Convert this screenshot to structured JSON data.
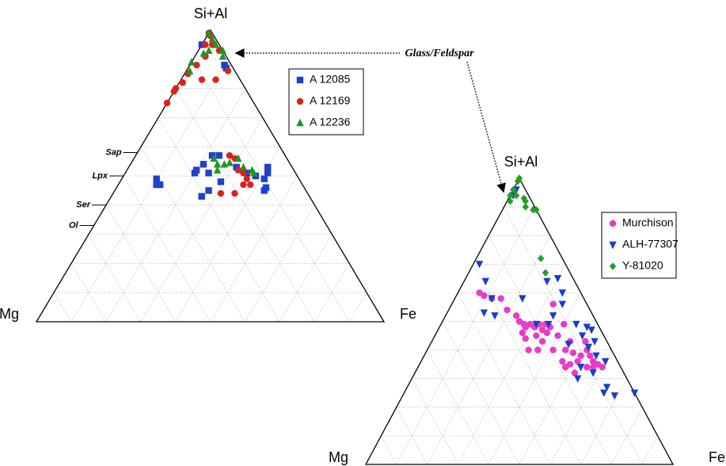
{
  "chart_data": [
    {
      "type": "ternary",
      "axes": {
        "top": "Si+Al",
        "left": "Mg",
        "right": "Fe"
      },
      "ticks": [
        10,
        20,
        30,
        40,
        50,
        60,
        70,
        80,
        90
      ],
      "grid": true,
      "axis_marks": [
        {
          "value": 58,
          "label": "Sap"
        },
        {
          "value": 50,
          "label": "Lpx"
        },
        {
          "value": 40,
          "label": "Ser"
        },
        {
          "value": 33,
          "label": "Ol"
        }
      ],
      "series": [
        {
          "name": "A 12085",
          "color": "#1f3fd0",
          "marker": "square",
          "values": [
            [
              95,
              5,
              0
            ],
            [
              88,
              2,
              10
            ],
            [
              87,
              2,
              11
            ],
            [
              49,
              41,
              10
            ],
            [
              47,
              41,
              12
            ],
            [
              47,
              42,
              11
            ],
            [
              51,
              29,
              20
            ],
            [
              52,
              28,
              20
            ],
            [
              54,
              25,
              21
            ],
            [
              51,
              25,
              24
            ],
            [
              57,
              21,
              22
            ],
            [
              57,
              19,
              24
            ],
            [
              45,
              28,
              27
            ],
            [
              43,
              31,
              26
            ],
            [
              48,
              23,
              29
            ],
            [
              53,
              16,
              31
            ],
            [
              53,
              7,
              40
            ],
            [
              51,
              8,
              41
            ],
            [
              49,
              10,
              41
            ],
            [
              46,
              11,
              43
            ],
            [
              45,
              12,
              43
            ],
            [
              51,
              14,
              35
            ],
            [
              50,
              12,
              38
            ]
          ]
        },
        {
          "name": "A 12169",
          "color": "#e0201a",
          "marker": "circle",
          "values": [
            [
              99,
              1,
              0
            ],
            [
              98,
              1,
              1
            ],
            [
              95,
              4,
              1
            ],
            [
              95,
              2,
              3
            ],
            [
              93,
              1,
              6
            ],
            [
              86,
              2,
              12
            ],
            [
              91,
              6,
              3
            ],
            [
              88,
              10,
              2
            ],
            [
              83,
              11,
              6
            ],
            [
              83,
              7,
              10
            ],
            [
              85,
              14,
              1
            ],
            [
              82,
              17,
              1
            ],
            [
              80,
              20,
              0
            ],
            [
              79,
              21,
              0
            ],
            [
              75,
              25,
              0
            ],
            [
              57,
              16,
              27
            ],
            [
              56,
              15,
              29
            ],
            [
              52,
              16,
              32
            ],
            [
              51,
              15,
              34
            ],
            [
              49,
              15,
              36
            ],
            [
              47,
              15,
              38
            ],
            [
              44,
              25,
              31
            ],
            [
              44,
              21,
              35
            ],
            [
              47,
              17,
              36
            ]
          ]
        },
        {
          "name": "A 12236",
          "color": "#1a9a1a",
          "marker": "triangle",
          "values": [
            [
              99,
              1,
              0
            ],
            [
              97,
              1,
              2
            ],
            [
              95,
              1,
              4
            ],
            [
              93,
              4,
              3
            ],
            [
              92,
              6,
              2
            ],
            [
              93,
              0,
              7
            ],
            [
              91,
              1,
              8
            ],
            [
              89,
              11,
              0
            ],
            [
              86,
              13,
              1
            ],
            [
              56,
              21,
              23
            ],
            [
              54,
              21,
              25
            ],
            [
              54,
              19,
              27
            ],
            [
              54,
              17,
              28
            ],
            [
              56,
              14,
              30
            ],
            [
              53,
              14,
              33
            ],
            [
              52,
              12,
              36
            ],
            [
              51,
              12,
              37
            ],
            [
              52,
              22,
              26
            ]
          ]
        }
      ]
    },
    {
      "type": "ternary",
      "axes": {
        "top": "Si+Al",
        "left": "Mg",
        "right": "Fe"
      },
      "ticks": [
        10,
        20,
        30,
        40,
        50,
        60,
        70,
        80,
        90
      ],
      "grid": true,
      "series": [
        {
          "name": "Murchison",
          "color": "#e83cc8",
          "marker": "circle",
          "values": [
            [
              60,
              33,
              7
            ],
            [
              59,
              32,
              9
            ],
            [
              58,
              30,
              12
            ],
            [
              58,
              27,
              15
            ],
            [
              54,
              27,
              19
            ],
            [
              52,
              25,
              23
            ],
            [
              50,
              25,
              25
            ],
            [
              49,
              24,
              27
            ],
            [
              48,
              24,
              28
            ],
            [
              49,
              22,
              29
            ],
            [
              48,
              21,
              31
            ],
            [
              49,
              19,
              32
            ],
            [
              47,
              19,
              34
            ],
            [
              49,
              17,
              34
            ],
            [
              48,
              16,
              36
            ],
            [
              46,
              18,
              36
            ],
            [
              46,
              26,
              28
            ],
            [
              44,
              26,
              30
            ],
            [
              45,
              22,
              33
            ],
            [
              43,
              21,
              36
            ],
            [
              40,
              27,
              33
            ],
            [
              40,
              24,
              36
            ],
            [
              40,
              19,
              41
            ],
            [
              40,
              15,
              45
            ],
            [
              43,
              12,
              45
            ],
            [
              45,
              15,
              40
            ],
            [
              36,
              18,
              46
            ],
            [
              35,
              16,
              49
            ],
            [
              39,
              13,
              48
            ],
            [
              36,
              13,
              51
            ],
            [
              38,
              11,
              51
            ],
            [
              40,
              8,
              52
            ],
            [
              38,
              8,
              54
            ],
            [
              36,
              8,
              56
            ],
            [
              35,
              7,
              58
            ],
            [
              34,
              11,
              55
            ],
            [
              34,
              9,
              57
            ],
            [
              34,
              6,
              60
            ],
            [
              34,
              18,
              48
            ],
            [
              32,
              16,
              52
            ],
            [
              56,
              11,
              33
            ],
            [
              49,
              11,
              40
            ],
            [
              43,
              7,
              50
            ]
          ]
        },
        {
          "name": "ALH-77307",
          "color": "#1a3ccc",
          "marker": "triangle-down",
          "values": [
            [
              94,
              5,
              1
            ],
            [
              96,
              3,
              1
            ],
            [
              70,
              28,
              2
            ],
            [
              64,
              29,
              7
            ],
            [
              58,
              30,
              12
            ],
            [
              53,
              35,
              12
            ],
            [
              52,
              32,
              16
            ],
            [
              58,
              20,
              22
            ],
            [
              64,
              9,
              27
            ],
            [
              65,
              5,
              30
            ],
            [
              60,
              6,
              34
            ],
            [
              56,
              8,
              36
            ],
            [
              52,
              13,
              35
            ],
            [
              49,
              7,
              44
            ],
            [
              48,
              4,
              48
            ],
            [
              47,
              3,
              50
            ],
            [
              45,
              7,
              48
            ],
            [
              41,
              7,
              52
            ],
            [
              43,
              4,
              53
            ],
            [
              42,
              13,
              45
            ],
            [
              49,
              16,
              35
            ],
            [
              49,
              20,
              31
            ],
            [
              38,
              6,
              56
            ],
            [
              36,
              4,
              60
            ],
            [
              32,
              10,
              58
            ],
            [
              25,
              10,
              65
            ],
            [
              27,
              8,
              65
            ],
            [
              24,
              7,
              69
            ],
            [
              25,
              0,
              75
            ],
            [
              30,
              16,
              54
            ],
            [
              34,
              13,
              53
            ]
          ]
        },
        {
          "name": "Y-81020",
          "color": "#22a022",
          "marker": "diamond",
          "values": [
            [
              100,
              0,
              0
            ],
            [
              99,
              1,
              0
            ],
            [
              96,
              4,
              0
            ],
            [
              94,
              6,
              0
            ],
            [
              94,
              4,
              2
            ],
            [
              93,
              2,
              5
            ],
            [
              92,
              2,
              6
            ],
            [
              90,
              3,
              7
            ],
            [
              89,
              1,
              10
            ],
            [
              89,
              0,
              11
            ],
            [
              92,
              7,
              1
            ],
            [
              72,
              7,
              21
            ],
            [
              67,
              8,
              25
            ]
          ]
        }
      ]
    }
  ],
  "annotation": {
    "text": "Glass/Feldspar"
  }
}
